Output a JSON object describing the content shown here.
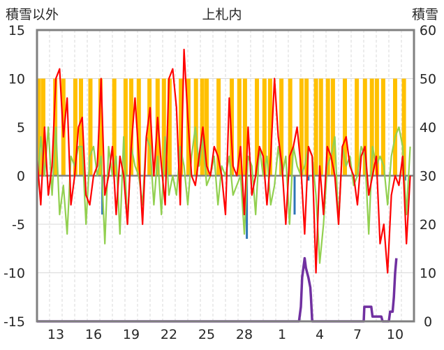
{
  "chart_data": {
    "type": "line",
    "title": "上札内",
    "y_left_label": "積雪以外",
    "y_right_label": "積雪",
    "y_left_lim": [
      -15,
      15
    ],
    "y_right_lim": [
      0,
      60
    ],
    "y_left_ticks": [
      "15",
      "10",
      "5",
      "0",
      "-5",
      "-10",
      "-15"
    ],
    "y_right_ticks": [
      "60",
      "50",
      "40",
      "30",
      "20",
      "10",
      "0"
    ],
    "x_range": [
      0,
      30
    ],
    "x_ticks": [
      {
        "x": 1.5,
        "label": "13"
      },
      {
        "x": 4.5,
        "label": "16"
      },
      {
        "x": 7.5,
        "label": "19"
      },
      {
        "x": 10.5,
        "label": "22"
      },
      {
        "x": 13.5,
        "label": "25"
      },
      {
        "x": 16.5,
        "label": "28"
      },
      {
        "x": 19.5,
        "label": "1"
      },
      {
        "x": 22.5,
        "label": "4"
      },
      {
        "x": 25.5,
        "label": "7"
      },
      {
        "x": 28.5,
        "label": "10"
      }
    ],
    "grid": true,
    "colors": {
      "sunshine": "#ffc000",
      "precip": "#2e75b6",
      "temp_max": "#ff0000",
      "temp_min": "#92d050",
      "snow": "#7030a0",
      "zero_line": "#808080"
    },
    "sunshine_bars": {
      "value": 10,
      "x": [
        0.15,
        0.5,
        1.45,
        2.1,
        3.05,
        3.5,
        4.25,
        5.05,
        6.15,
        7.05,
        7.5,
        8.1,
        8.95,
        9.6,
        10.1,
        10.55,
        11.45,
        12.05,
        12.65,
        13.15,
        13.5,
        14.45,
        15.5,
        16.1,
        16.55,
        17.5,
        18.1,
        18.55,
        19.45,
        20.15,
        21.05,
        21.45,
        22.2,
        22.6,
        23.15,
        23.55,
        24.5,
        25.45,
        26.1,
        26.65,
        27.05,
        27.55,
        28.5,
        29.2
      ]
    },
    "precip_bars": [
      {
        "x": 5.2,
        "value": -4
      },
      {
        "x": 16.7,
        "value": -6.5
      },
      {
        "x": 20.5,
        "value": -4
      },
      {
        "x": 21.6,
        "value": -0.5
      },
      {
        "x": 29.3,
        "value": -0.5
      }
    ],
    "series": [
      {
        "key": "temp_min",
        "x": [
          0.0,
          0.3,
          0.6,
          0.9,
          1.2,
          1.5,
          1.8,
          2.1,
          2.4,
          2.7,
          3.0,
          3.3,
          3.6,
          3.9,
          4.2,
          4.5,
          4.8,
          5.1,
          5.4,
          5.7,
          6.0,
          6.3,
          6.6,
          6.9,
          7.2,
          7.5,
          7.8,
          8.1,
          8.4,
          8.7,
          9.0,
          9.3,
          9.6,
          9.9,
          10.2,
          10.5,
          10.8,
          11.1,
          11.4,
          11.7,
          12.0,
          12.3,
          12.6,
          12.9,
          13.2,
          13.5,
          13.8,
          14.1,
          14.4,
          14.7,
          15.0,
          15.3,
          15.6,
          15.9,
          16.2,
          16.5,
          16.8,
          17.1,
          17.4,
          17.7,
          18.0,
          18.3,
          18.6,
          18.9,
          19.2,
          19.5,
          19.8,
          20.1,
          20.4,
          20.7,
          21.0,
          21.3,
          21.6,
          21.9,
          22.2,
          22.5,
          22.8,
          23.1,
          23.4,
          23.7,
          24.0,
          24.3,
          24.6,
          24.9,
          25.2,
          25.5,
          25.8,
          26.1,
          26.4,
          26.7,
          27.0,
          27.3,
          27.6,
          27.9,
          28.2,
          28.5,
          28.8,
          29.1,
          29.4,
          29.7
        ],
        "values": [
          -2,
          4,
          0,
          5,
          -2,
          5,
          -4,
          -1,
          -6,
          2,
          1,
          3,
          3,
          -5,
          2,
          3,
          0,
          2,
          -7,
          3,
          0,
          2,
          -6,
          4,
          -5,
          3,
          1,
          0,
          -3,
          4,
          3,
          -3,
          2,
          -4,
          4,
          -2,
          0,
          -2,
          3,
          1,
          -3,
          2,
          5,
          1,
          4,
          -1,
          0,
          2,
          -3,
          1,
          0,
          2,
          -2,
          -1,
          0,
          -6,
          2,
          1,
          -4,
          3,
          0,
          2,
          -3,
          -1,
          3,
          0,
          2,
          -5,
          3,
          1,
          0,
          1,
          3,
          2,
          -2,
          -9,
          -5,
          1,
          2,
          4,
          -5,
          3,
          1,
          2,
          -1,
          0,
          3,
          2,
          -6,
          3,
          1,
          2,
          1,
          -3,
          2,
          4,
          5,
          3,
          -4,
          3
        ]
      },
      {
        "key": "temp_max",
        "x": [
          0.0,
          0.3,
          0.6,
          0.9,
          1.2,
          1.5,
          1.8,
          2.1,
          2.4,
          2.7,
          3.0,
          3.3,
          3.6,
          3.9,
          4.2,
          4.5,
          4.8,
          5.1,
          5.4,
          5.7,
          6.0,
          6.3,
          6.6,
          6.9,
          7.2,
          7.5,
          7.8,
          8.1,
          8.4,
          8.7,
          9.0,
          9.3,
          9.6,
          9.9,
          10.2,
          10.5,
          10.8,
          11.1,
          11.4,
          11.7,
          12.0,
          12.3,
          12.6,
          12.9,
          13.2,
          13.5,
          13.8,
          14.1,
          14.4,
          14.7,
          15.0,
          15.3,
          15.6,
          15.9,
          16.2,
          16.5,
          16.8,
          17.1,
          17.4,
          17.7,
          18.0,
          18.3,
          18.6,
          18.9,
          19.2,
          19.5,
          19.8,
          20.1,
          20.4,
          20.7,
          21.0,
          21.3,
          21.6,
          21.9,
          22.2,
          22.5,
          22.8,
          23.1,
          23.4,
          23.7,
          24.0,
          24.3,
          24.6,
          24.9,
          25.2,
          25.5,
          25.8,
          26.1,
          26.4,
          26.7,
          27.0,
          27.3,
          27.6,
          27.9,
          28.2,
          28.5,
          28.8,
          29.1,
          29.4,
          29.7
        ],
        "values": [
          2,
          -3,
          5,
          -2,
          1,
          10,
          11,
          4,
          8,
          -3,
          0,
          5,
          6,
          -2,
          -3,
          0,
          1,
          10,
          -2,
          0,
          3,
          -4,
          2,
          0,
          -5,
          3,
          8,
          2,
          -5,
          4,
          7,
          0,
          6,
          1,
          -3,
          10,
          11,
          7,
          -3,
          13,
          6,
          0,
          -1,
          2,
          5,
          1,
          0,
          3,
          2,
          0,
          -4,
          8,
          1,
          0,
          3,
          -4,
          5,
          -2,
          0,
          3,
          2,
          -3,
          2,
          10,
          4,
          1,
          -5,
          2,
          3,
          5,
          1,
          -6,
          3,
          2,
          -10,
          1,
          -4,
          3,
          2,
          0,
          -5,
          3,
          4,
          1,
          0,
          -3,
          2,
          3,
          -2,
          0,
          2,
          -7,
          -5,
          -10,
          -2,
          0,
          -1,
          2,
          -7,
          0
        ]
      },
      {
        "key": "snow",
        "axis": "right",
        "x": [
          0,
          20.7,
          20.85,
          21.0,
          21.1,
          21.3,
          21.4,
          21.6,
          21.75,
          21.8,
          21.9,
          25.8,
          26.0,
          26.05,
          26.6,
          26.7,
          27.0,
          27.4,
          27.5,
          27.8,
          28.0,
          28.1,
          28.3,
          28.4,
          28.5,
          28.6
        ],
        "values": [
          0,
          0,
          0,
          3,
          9,
          13,
          11,
          9,
          7,
          5,
          0,
          0,
          0,
          3,
          3,
          1,
          1,
          1,
          0,
          0,
          0,
          2,
          2,
          5,
          10,
          13
        ]
      }
    ]
  }
}
